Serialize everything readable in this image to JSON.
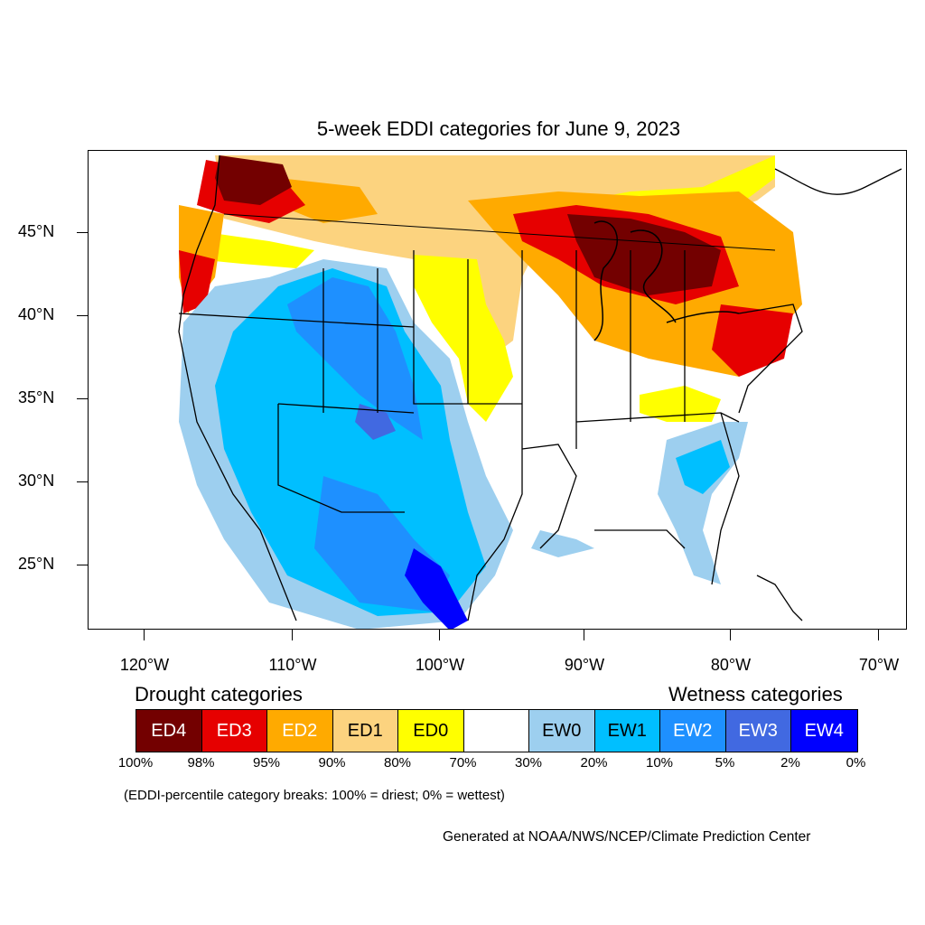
{
  "title": "5-week EDDI categories for June 9, 2023",
  "map": {
    "lat_labels": [
      "45°N",
      "40°N",
      "35°N",
      "30°N",
      "25°N"
    ],
    "lon_labels": [
      "120°W",
      "110°W",
      "100°W",
      "90°W",
      "80°W",
      "70°W"
    ]
  },
  "legend": {
    "drought_heading": "Drought categories",
    "wetness_heading": "Wetness categories",
    "categories": [
      {
        "label": "ED4",
        "color": "#730000",
        "text_color": "#ffffff"
      },
      {
        "label": "ED3",
        "color": "#e60000",
        "text_color": "#ffffff"
      },
      {
        "label": "ED2",
        "color": "#ffaa00",
        "text_color": "#ffffff"
      },
      {
        "label": "ED1",
        "color": "#fcd37f",
        "text_color": "#000000"
      },
      {
        "label": "ED0",
        "color": "#ffff00",
        "text_color": "#000000"
      },
      {
        "label": "",
        "color": "#ffffff",
        "text_color": "#000000"
      },
      {
        "label": "EW0",
        "color": "#9dcfef",
        "text_color": "#000000"
      },
      {
        "label": "EW1",
        "color": "#00bfff",
        "text_color": "#000000"
      },
      {
        "label": "EW2",
        "color": "#1e90ff",
        "text_color": "#ffffff"
      },
      {
        "label": "EW3",
        "color": "#4169e1",
        "text_color": "#ffffff"
      },
      {
        "label": "EW4",
        "color": "#0000ff",
        "text_color": "#ffffff"
      }
    ],
    "percentiles": [
      "100%",
      "98%",
      "95%",
      "90%",
      "80%",
      "70%",
      "30%",
      "20%",
      "10%",
      "5%",
      "2%",
      "0%"
    ]
  },
  "note": "(EDDI-percentile category breaks: 100% = driest; 0% = wettest)",
  "credit": "Generated at NOAA/NWS/NCEP/Climate Prediction Center"
}
